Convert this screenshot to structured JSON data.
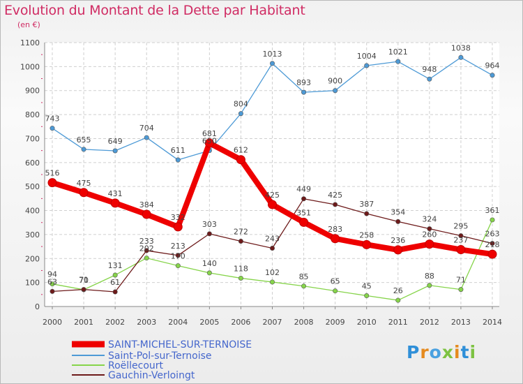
{
  "header": {
    "title": "Evolution du Montant de la Dette par Habitant",
    "subtitle": "(en €)"
  },
  "logo": {
    "text": "Proxiti"
  },
  "chart_data": {
    "type": "line",
    "title": "Evolution du Montant de la Dette par Habitant",
    "subtitle": "(en €)",
    "xlabel": "",
    "ylabel": "",
    "x": [
      "2000",
      "2001",
      "2002",
      "2003",
      "2004",
      "2005",
      "2006",
      "2007",
      "2008",
      "2009",
      "2010",
      "2011",
      "2012",
      "2013",
      "2014"
    ],
    "ylim": [
      0,
      1100
    ],
    "yticks": [
      0,
      100,
      200,
      300,
      400,
      500,
      600,
      700,
      800,
      900,
      1000,
      1100
    ],
    "grid": true,
    "legend_position": "bottom-left",
    "series": [
      {
        "name": "SAINT-MICHEL-SUR-TERNOISE",
        "color": "#ee0000",
        "values": [
          516,
          475,
          431,
          384,
          332,
          681,
          612,
          425,
          351,
          283,
          258,
          236,
          260,
          237,
          218
        ]
      },
      {
        "name": "Saint-Pol-sur-Ternoise",
        "color": "#4d9ad6",
        "values": [
          743,
          655,
          649,
          704,
          611,
          650,
          804,
          1013,
          893,
          900,
          1004,
          1021,
          948,
          1038,
          964
        ]
      },
      {
        "name": "Roëllecourt",
        "color": "#86d44a",
        "values": [
          94,
          70,
          131,
          202,
          170,
          140,
          118,
          102,
          85,
          65,
          45,
          26,
          88,
          71,
          361
        ]
      },
      {
        "name": "Gauchin-Verloingt",
        "color": "#6d1a1a",
        "values": [
          63,
          71,
          61,
          233,
          213,
          303,
          272,
          243,
          449,
          425,
          387,
          354,
          324,
          295,
          263
        ]
      }
    ]
  }
}
